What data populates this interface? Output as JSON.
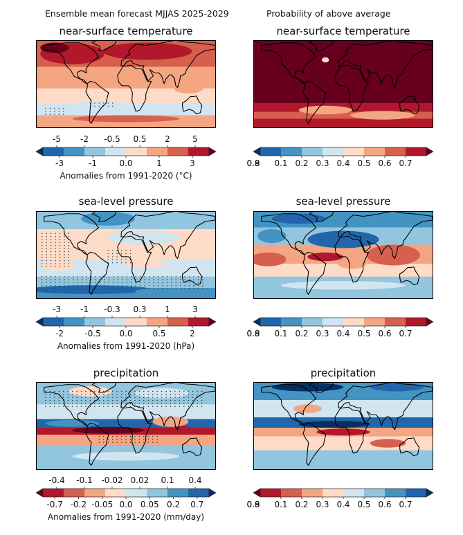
{
  "header": {
    "left_title": "Ensemble mean forecast MJJAS 2025-2029",
    "right_title": "Probability of above average"
  },
  "palettes": {
    "red_blue": [
      "#053061",
      "#2166ac",
      "#4393c3",
      "#92c5de",
      "#d1e5f0",
      "#fddbc7",
      "#f4a582",
      "#d6604d",
      "#b2182b",
      "#67001f"
    ],
    "brown_blue": [
      "#67001f",
      "#b2182b",
      "#d6604d",
      "#f4a582",
      "#fddbc7",
      "#d1e5f0",
      "#92c5de",
      "#4393c3",
      "#2166ac",
      "#053061"
    ]
  },
  "chart_data": [
    {
      "type": "heatmap",
      "title": "near-surface temperature",
      "colorbar": {
        "upper_ticks": [
          "-5",
          "-2",
          "-0.5",
          "0.5",
          "2",
          "5"
        ],
        "lower_ticks": [
          "-3",
          "-1",
          "0.0",
          "1",
          "3"
        ],
        "label": "Anomalies from 1991-2020 (°C)"
      }
    },
    {
      "type": "heatmap",
      "title": "near-surface temperature",
      "colorbar": {
        "lower_ticks": [
          "0.1",
          "0.2",
          "0.3",
          "0.4",
          "0.5",
          "0.6",
          "0.7",
          "0.8",
          "0.9"
        ]
      }
    },
    {
      "type": "heatmap",
      "title": "sea-level pressure",
      "colorbar": {
        "upper_ticks": [
          "-3",
          "-1",
          "-0.3",
          "0.3",
          "1",
          "3"
        ],
        "lower_ticks": [
          "-2",
          "-0.5",
          "0.0",
          "0.5",
          "2"
        ],
        "label": "Anomalies from 1991-2020 (hPa)"
      }
    },
    {
      "type": "heatmap",
      "title": "sea-level pressure",
      "colorbar": {
        "lower_ticks": [
          "0.1",
          "0.2",
          "0.3",
          "0.4",
          "0.5",
          "0.6",
          "0.7",
          "0.8",
          "0.9"
        ]
      }
    },
    {
      "type": "heatmap",
      "title": "precipitation",
      "colorbar": {
        "upper_ticks": [
          "-0.4",
          "-0.1",
          "-0.02",
          "0.02",
          "0.1",
          "0.4"
        ],
        "lower_ticks": [
          "-0.7",
          "-0.2",
          "-0.05",
          "0.0",
          "0.05",
          "0.2",
          "0.7"
        ],
        "label": "Anomalies from 1991-2020 (mm/day)"
      }
    },
    {
      "type": "heatmap",
      "title": "precipitation",
      "colorbar": {
        "lower_ticks": [
          "0.1",
          "0.2",
          "0.3",
          "0.4",
          "0.5",
          "0.6",
          "0.7",
          "0.8",
          "0.9"
        ]
      }
    }
  ]
}
